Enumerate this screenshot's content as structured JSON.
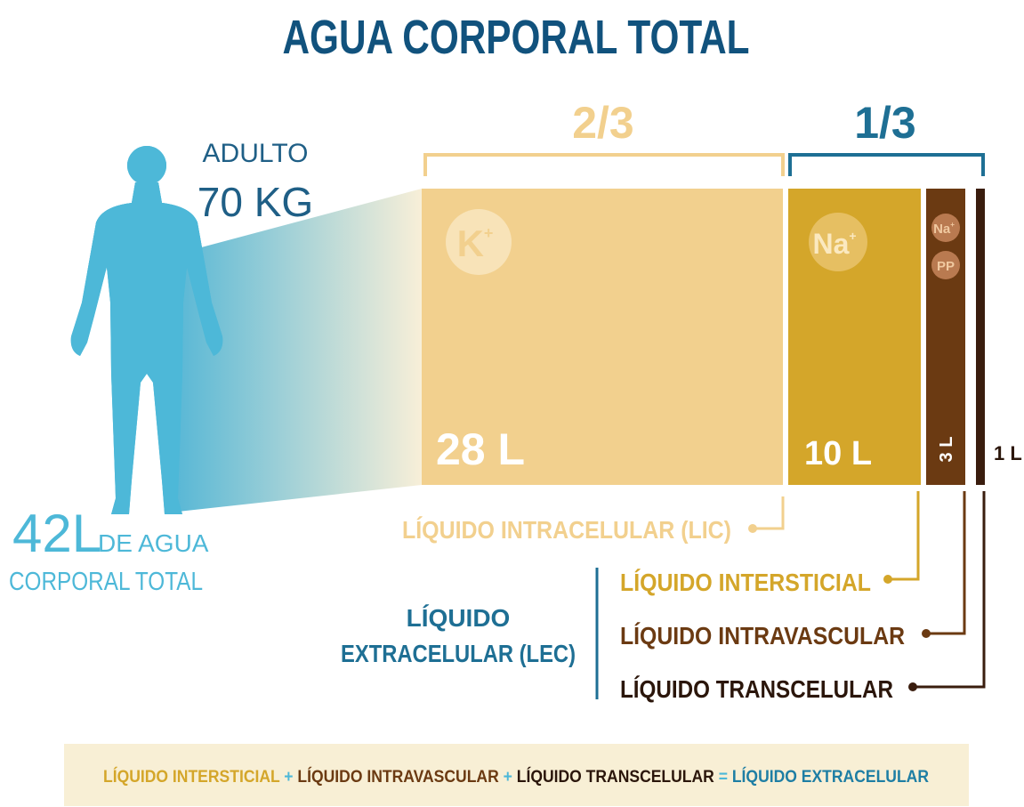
{
  "title": "AGUA CORPORAL TOTAL",
  "person": {
    "line1": "ADULTO",
    "line2": "70 KG",
    "total": "42L",
    "total_rest": "DE AGUA",
    "total_line2": "CORPORAL TOTAL"
  },
  "fractions": [
    "2/3",
    "1/3"
  ],
  "ions": [
    {
      "symbol": "K",
      "charge": "+"
    },
    {
      "symbol": "Na",
      "charge": "+"
    },
    {
      "symbol": "Na",
      "charge": "+"
    },
    {
      "symbol": "PP"
    }
  ],
  "volumes": [
    "28 L",
    "10 L",
    "3 L",
    "1 L"
  ],
  "labels": {
    "intracelular": "LÍQUIDO INTRACELULAR (LIC)",
    "intersticial": "LÍQUIDO INTERSTICIAL",
    "intravascular": "LÍQUIDO INTRAVASCULAR",
    "transcelular": "LÍQUIDO TRANSCELULAR",
    "extracelular": [
      "LÍQUIDO",
      "EXTRACELULAR (LEC)"
    ]
  },
  "footer": [
    "LÍQUIDO INTERSTICIAL",
    "+",
    "LÍQUIDO INTRAVASCULAR",
    "+",
    "LÍQUIDO TRANSCELULAR",
    "=",
    "LÍQUIDO EXTRACELULAR"
  ]
}
